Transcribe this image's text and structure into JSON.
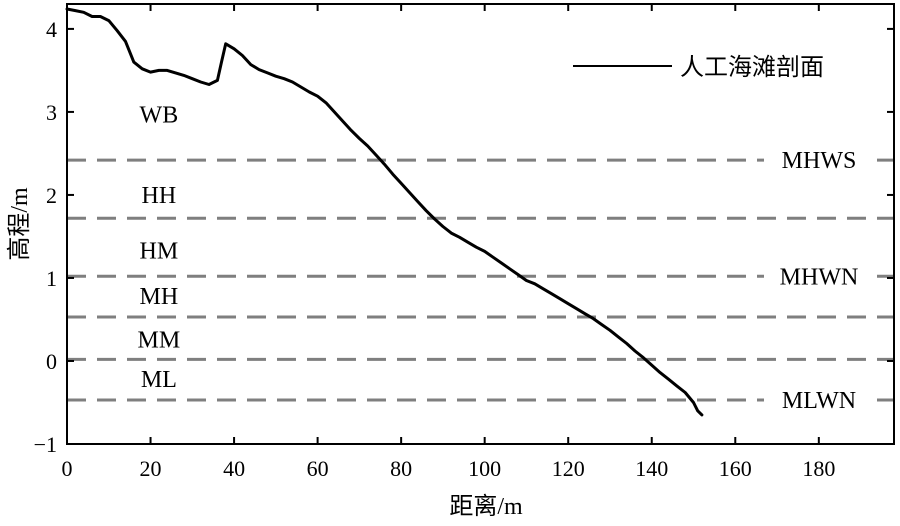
{
  "chart_data": {
    "type": "line",
    "xlabel": "距离/m",
    "ylabel": "高程/m",
    "xlim": [
      0,
      198
    ],
    "ylim": [
      -1,
      4.3
    ],
    "x_ticks": [
      0,
      20,
      40,
      60,
      80,
      100,
      120,
      140,
      160,
      180
    ],
    "y_ticks": [
      -1,
      0,
      1,
      2,
      3,
      4
    ],
    "y_tick_labels": [
      "−1",
      "0",
      "1",
      "2",
      "3",
      "4"
    ],
    "grid": false,
    "legend": {
      "position": "top-right",
      "entries": [
        "人工海滩剖面"
      ]
    },
    "series": [
      {
        "name": "人工海滩剖面",
        "color": "#000000",
        "x": [
          0,
          2,
          4,
          6,
          8,
          10,
          12,
          14,
          16,
          18,
          20,
          22,
          24,
          26,
          28,
          30,
          32,
          34,
          36,
          37,
          38,
          40,
          42,
          44,
          46,
          48,
          50,
          52,
          54,
          56,
          58,
          60,
          62,
          64,
          66,
          68,
          70,
          72,
          74,
          76,
          78,
          80,
          82,
          84,
          86,
          88,
          90,
          92,
          94,
          96,
          98,
          100,
          102,
          104,
          106,
          108,
          110,
          112,
          114,
          116,
          118,
          120,
          122,
          124,
          126,
          128,
          130,
          132,
          134,
          136,
          138,
          140,
          142,
          144,
          146,
          148,
          150,
          151,
          152
        ],
        "y": [
          4.24,
          4.22,
          4.2,
          4.15,
          4.15,
          4.1,
          3.98,
          3.85,
          3.6,
          3.52,
          3.48,
          3.5,
          3.5,
          3.47,
          3.44,
          3.4,
          3.36,
          3.33,
          3.38,
          3.6,
          3.82,
          3.76,
          3.68,
          3.57,
          3.51,
          3.47,
          3.43,
          3.4,
          3.36,
          3.3,
          3.24,
          3.19,
          3.11,
          3.0,
          2.89,
          2.78,
          2.68,
          2.59,
          2.48,
          2.37,
          2.25,
          2.14,
          2.03,
          1.92,
          1.81,
          1.71,
          1.62,
          1.54,
          1.49,
          1.43,
          1.37,
          1.32,
          1.25,
          1.18,
          1.11,
          1.04,
          0.97,
          0.93,
          0.87,
          0.81,
          0.75,
          0.69,
          0.63,
          0.57,
          0.51,
          0.44,
          0.37,
          0.29,
          0.21,
          0.12,
          0.04,
          -0.05,
          -0.14,
          -0.22,
          -0.3,
          -0.38,
          -0.5,
          -0.6,
          -0.65
        ]
      }
    ],
    "reference_lines": [
      {
        "y": 2.42,
        "label": "MHWS"
      },
      {
        "y": 1.72,
        "label": ""
      },
      {
        "y": 1.02,
        "label": "MHWN"
      },
      {
        "y": 0.53,
        "label": ""
      },
      {
        "y": 0.02,
        "label": ""
      },
      {
        "y": -0.47,
        "label": "MLWN"
      }
    ],
    "zones": [
      {
        "label": "WB",
        "x": 22,
        "y": 2.97
      },
      {
        "label": "HH",
        "x": 22,
        "y": 2.0
      },
      {
        "label": "HM",
        "x": 22,
        "y": 1.33
      },
      {
        "label": "MH",
        "x": 22,
        "y": 0.78
      },
      {
        "label": "MM",
        "x": 22,
        "y": 0.26
      },
      {
        "label": "ML",
        "x": 22,
        "y": -0.22
      }
    ]
  }
}
